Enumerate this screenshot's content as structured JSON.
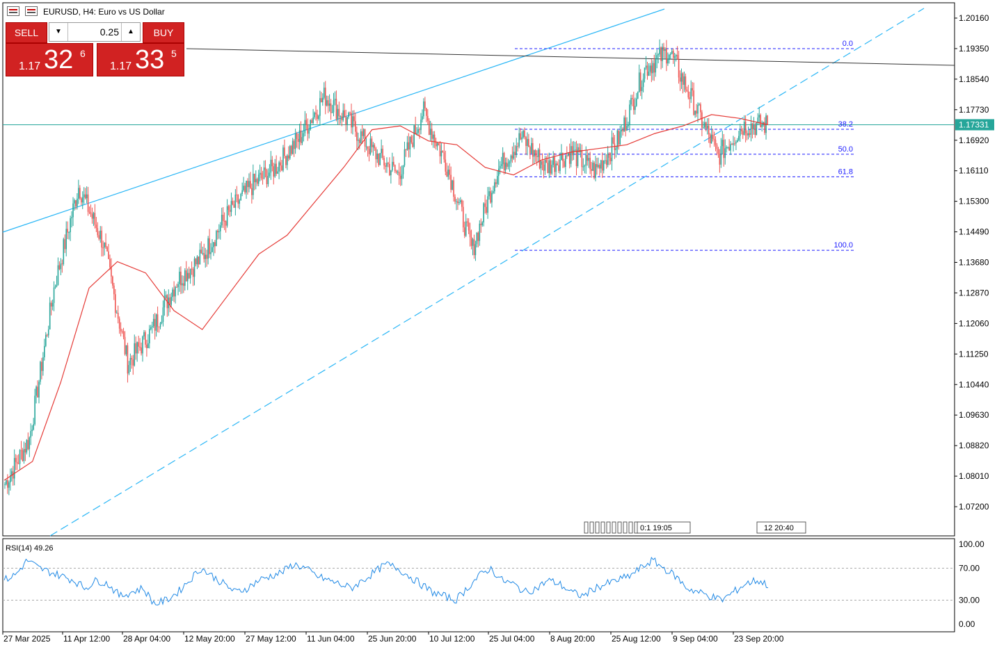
{
  "window": {
    "symbol_title": "EURUSD, H4:  Euro vs US Dollar"
  },
  "trade_panel": {
    "sell_label": "SELL",
    "buy_label": "BUY",
    "lot_value": "0.25",
    "sell_price_prefix": "1.17",
    "sell_price_big": "32",
    "sell_price_sup": "6",
    "buy_price_prefix": "1.17",
    "buy_price_big": "33",
    "buy_price_sup": "5"
  },
  "price_axis": {
    "labels": [
      "1.20160",
      "1.19350",
      "1.18540",
      "1.17730",
      "1.16920",
      "1.16110",
      "1.15300",
      "1.14490",
      "1.13680",
      "1.12870",
      "1.12060",
      "1.11250",
      "1.10440",
      "1.09630",
      "1.08820",
      "1.08010",
      "1.07200"
    ],
    "current_price": "1.17331"
  },
  "time_axis": {
    "labels": [
      "27 Mar 2025",
      "11 Apr 12:00",
      "28 Apr 04:00",
      "12 May 20:00",
      "27 May 12:00",
      "11 Jun 04:00",
      "25 Jun 20:00",
      "10 Jul 12:00",
      "25 Jul 04:00",
      "8 Aug 20:00",
      "25 Aug 12:00",
      "9 Sep 04:00",
      "23 Sep 20:00"
    ]
  },
  "fibonacci": {
    "levels": [
      "0.0",
      "38.2",
      "50.0",
      "61.8",
      "100.0"
    ]
  },
  "event_markers": {
    "group1_text": "0:1 19:05",
    "group2_text": "12 20:40"
  },
  "rsi": {
    "label": "RSI(14) 49.26",
    "axis_labels": [
      "100.00",
      "70.00",
      "30.00",
      "0.00"
    ]
  },
  "colors": {
    "bull_candle": "#26a69a",
    "bear_candle": "#ef5350",
    "moving_average": "#e53935",
    "trendline_cyan": "#29b6f6",
    "horizontal_level": "#26a69a",
    "fib_lines": "#1a1aff",
    "rsi_line": "#1e88e5",
    "current_price_bg": "#26a69a",
    "button_red": "#d12222"
  },
  "chart_data": {
    "type": "candlestick",
    "symbol": "EURUSD",
    "timeframe": "H4",
    "ylim": [
      1.064,
      1.206
    ],
    "price_path": {
      "dates": [
        "27 Mar 2025",
        "11 Apr 12:00",
        "28 Apr 04:00",
        "12 May 20:00",
        "27 May 12:00",
        "11 Jun 04:00",
        "25 Jun 20:00",
        "10 Jul 12:00",
        "25 Jul 04:00",
        "8 Aug 20:00",
        "25 Aug 12:00",
        "9 Sep 04:00",
        "23 Sep 20:00"
      ],
      "close": [
        1.08,
        1.133,
        1.133,
        1.119,
        1.138,
        1.151,
        1.173,
        1.168,
        1.172,
        1.165,
        1.168,
        1.172,
        1.1733
      ]
    },
    "key_prices": [
      1.078,
      1.09,
      1.13,
      1.157,
      1.142,
      1.11,
      1.119,
      1.132,
      1.138,
      1.149,
      1.157,
      1.162,
      1.17,
      1.181,
      1.174,
      1.166,
      1.16,
      1.177,
      1.162,
      1.14,
      1.161,
      1.17,
      1.162,
      1.166,
      1.161,
      1.17,
      1.188,
      1.193,
      1.179,
      1.165,
      1.173,
      1.1733
    ],
    "moving_average_path": [
      1.079,
      1.084,
      1.105,
      1.13,
      1.137,
      1.134,
      1.124,
      1.119,
      1.129,
      1.139,
      1.144,
      1.153,
      1.162,
      1.172,
      1.173,
      1.169,
      1.168,
      1.162,
      1.16,
      1.164,
      1.166,
      1.167,
      1.168,
      1.171,
      1.173,
      1.176,
      1.175,
      1.1733
    ],
    "fibonacci_prices": {
      "0.0": 1.1935,
      "38.2": 1.1721,
      "50.0": 1.1655,
      "61.8": 1.1595,
      "100.0": 1.14
    },
    "horizontal_level": 1.17331,
    "rsi_values": [
      55,
      62,
      80,
      70,
      65,
      60,
      55,
      45,
      55,
      50,
      35,
      40,
      45,
      25,
      30,
      40,
      55,
      70,
      60,
      50,
      40,
      45,
      55,
      60,
      65,
      75,
      70,
      60,
      55,
      50,
      45,
      55,
      65,
      75,
      70,
      60,
      50,
      40,
      35,
      30,
      45,
      60,
      70,
      55,
      50,
      40,
      45,
      55,
      50,
      40,
      35,
      45,
      50,
      55,
      60,
      70,
      80,
      70,
      60,
      45,
      40,
      35,
      30,
      40,
      50,
      55,
      49
    ],
    "rsi_ylim": [
      0,
      100
    ],
    "rsi_levels": [
      70,
      30
    ]
  }
}
